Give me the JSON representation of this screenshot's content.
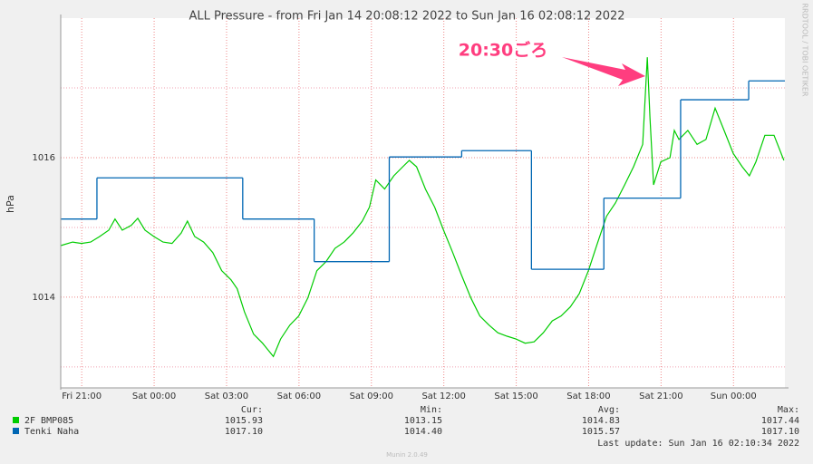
{
  "chart_data": {
    "type": "line",
    "title": "ALL Pressure - from Fri Jan 14 20:08:12 2022 to Sun Jan 16 02:08:12 2022",
    "y_label": "hPa",
    "side_text": "RRDTOOL / TOBI OETIKER",
    "annotation": "20:30ごろ",
    "xlim": [
      0,
      30
    ],
    "xticks": [
      {
        "value": 0.87,
        "label": "Fri 21:00"
      },
      {
        "value": 3.87,
        "label": "Sat 00:00"
      },
      {
        "value": 6.87,
        "label": "Sat 03:00"
      },
      {
        "value": 9.87,
        "label": "Sat 06:00"
      },
      {
        "value": 12.87,
        "label": "Sat 09:00"
      },
      {
        "value": 15.87,
        "label": "Sat 12:00"
      },
      {
        "value": 18.87,
        "label": "Sat 15:00"
      },
      {
        "value": 21.87,
        "label": "Sat 18:00"
      },
      {
        "value": 24.87,
        "label": "Sat 21:00"
      },
      {
        "value": 27.87,
        "label": "Sun 00:00"
      }
    ],
    "ylim": [
      1012.7,
      1018.0
    ],
    "yticks": [
      1014,
      1016
    ],
    "minor_yticks": [
      1013,
      1015,
      1017
    ],
    "grid": true,
    "series": [
      {
        "name": "2F BMP085",
        "color": "#00cc00",
        "step": false,
        "x": [
          0,
          0.49,
          0.86,
          1.24,
          1.61,
          1.99,
          2.25,
          2.55,
          2.92,
          3.19,
          3.49,
          3.86,
          4.24,
          4.61,
          4.99,
          5.25,
          5.55,
          5.92,
          6.3,
          6.67,
          7.05,
          7.31,
          7.61,
          7.99,
          8.36,
          8.81,
          9.11,
          9.49,
          9.86,
          10.24,
          10.61,
          10.99,
          11.36,
          11.74,
          12.11,
          12.49,
          12.79,
          13.05,
          13.42,
          13.8,
          14.17,
          14.44,
          14.74,
          15.11,
          15.49,
          15.86,
          16.24,
          16.61,
          16.99,
          17.36,
          17.74,
          18.11,
          18.49,
          18.86,
          19.24,
          19.61,
          19.99,
          20.36,
          20.73,
          21.11,
          21.48,
          21.86,
          22.23,
          22.61,
          22.98,
          23.36,
          23.73,
          24.11,
          24.3,
          24.41,
          24.56,
          24.86,
          25.24,
          25.42,
          25.61,
          25.98,
          26.36,
          26.73,
          27.11,
          27.48,
          27.86,
          28.23,
          28.53,
          28.8,
          29.17,
          29.55,
          29.96
        ],
        "values": [
          1014.74,
          1014.79,
          1014.77,
          1014.79,
          1014.87,
          1014.96,
          1015.12,
          1014.96,
          1015.03,
          1015.13,
          1014.96,
          1014.87,
          1014.79,
          1014.77,
          1014.92,
          1015.09,
          1014.87,
          1014.79,
          1014.64,
          1014.38,
          1014.25,
          1014.12,
          1013.79,
          1013.47,
          1013.34,
          1013.15,
          1013.4,
          1013.6,
          1013.73,
          1013.99,
          1014.38,
          1014.51,
          1014.7,
          1014.79,
          1014.92,
          1015.09,
          1015.29,
          1015.68,
          1015.55,
          1015.74,
          1015.87,
          1015.96,
          1015.87,
          1015.55,
          1015.29,
          1014.96,
          1014.64,
          1014.31,
          1013.99,
          1013.73,
          1013.6,
          1013.49,
          1013.44,
          1013.4,
          1013.34,
          1013.36,
          1013.49,
          1013.66,
          1013.73,
          1013.86,
          1014.05,
          1014.38,
          1014.77,
          1015.16,
          1015.35,
          1015.61,
          1015.87,
          1016.19,
          1017.44,
          1016.58,
          1015.61,
          1015.94,
          1016.0,
          1016.39,
          1016.26,
          1016.39,
          1016.19,
          1016.26,
          1016.71,
          1016.39,
          1016.06,
          1015.87,
          1015.74,
          1015.94,
          1016.32,
          1016.32,
          1015.96
        ],
        "cur": "1015.93",
        "min": "1013.15",
        "avg": "1014.83",
        "max": "1017.44"
      },
      {
        "name": "Tenki Naha",
        "color": "#0066b3",
        "step": true,
        "x": [
          0,
          1.5,
          7.54,
          10.5,
          13.61,
          16.61,
          19.5,
          22.5,
          25.68,
          28.5
        ],
        "values": [
          1015.12,
          1015.71,
          1015.12,
          1014.51,
          1016.01,
          1016.1,
          1014.4,
          1015.42,
          1016.83,
          1017.1
        ],
        "cur": "1017.10",
        "min": "1014.40",
        "avg": "1015.57",
        "max": "1017.10"
      }
    ],
    "legend_headers": [
      "Cur:",
      "Min:",
      "Avg:",
      "Max:"
    ],
    "last_update": "Last update: Sun Jan 16 02:10:34 2022",
    "footer": "Munin 2.0.49"
  }
}
